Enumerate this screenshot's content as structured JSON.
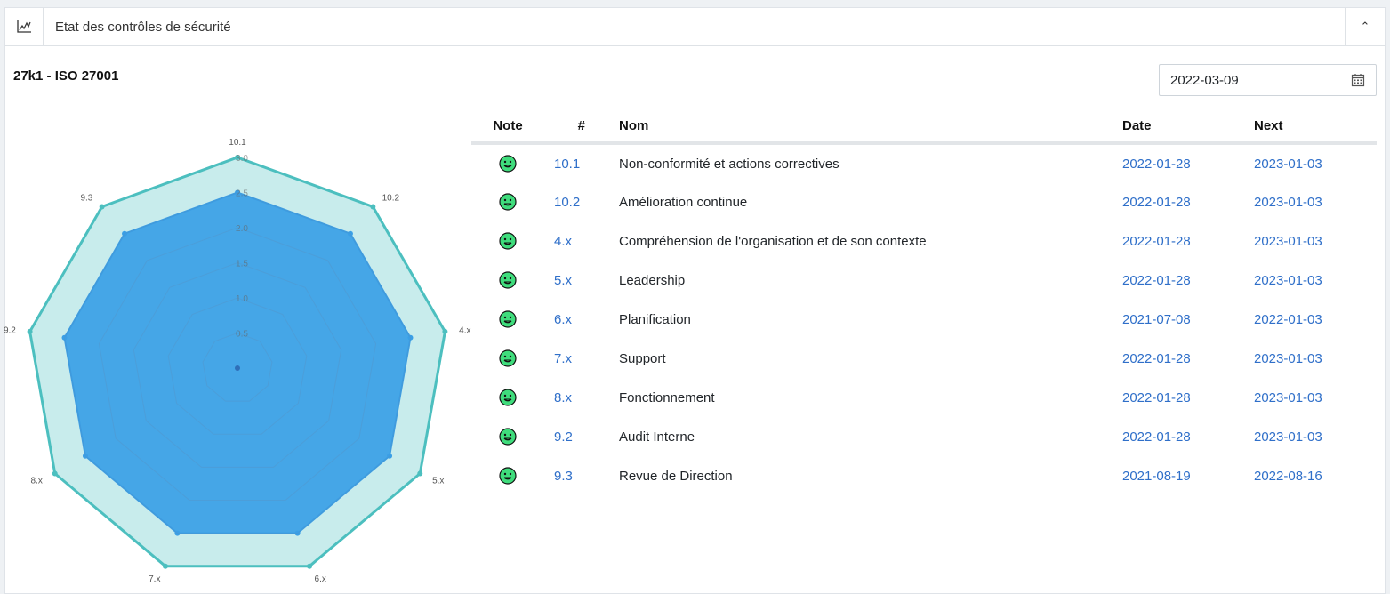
{
  "panel": {
    "title": "Etat des contrôles de sécurité",
    "header_icon": "line-chart-icon",
    "toggle_icon": "chevron-up-icon",
    "toggle_glyph": "⌃"
  },
  "subtitle": "27k1 - ISO 27001",
  "date_input": {
    "value": "2022-03-09",
    "icon": "calendar-icon"
  },
  "table": {
    "headers": {
      "note": "Note",
      "num": "#",
      "nom": "Nom",
      "date": "Date",
      "next": "Next"
    },
    "rows": [
      {
        "note": "smiley-green",
        "num": "10.1",
        "nom": "Non-conformité et actions correctives",
        "date": "2022-01-28",
        "next": "2023-01-03"
      },
      {
        "note": "smiley-green",
        "num": "10.2",
        "nom": "Amélioration continue",
        "date": "2022-01-28",
        "next": "2023-01-03"
      },
      {
        "note": "smiley-green",
        "num": "4.x",
        "nom": "Compréhension de l'organisation et de son contexte",
        "date": "2022-01-28",
        "next": "2023-01-03"
      },
      {
        "note": "smiley-green",
        "num": "5.x",
        "nom": "Leadership",
        "date": "2022-01-28",
        "next": "2023-01-03"
      },
      {
        "note": "smiley-green",
        "num": "6.x",
        "nom": "Planification",
        "date": "2021-07-08",
        "next": "2022-01-03"
      },
      {
        "note": "smiley-green",
        "num": "7.x",
        "nom": "Support",
        "date": "2022-01-28",
        "next": "2023-01-03"
      },
      {
        "note": "smiley-green",
        "num": "8.x",
        "nom": "Fonctionnement",
        "date": "2022-01-28",
        "next": "2023-01-03"
      },
      {
        "note": "smiley-green",
        "num": "9.2",
        "nom": "Audit Interne",
        "date": "2022-01-28",
        "next": "2023-01-03"
      },
      {
        "note": "smiley-green",
        "num": "9.3",
        "nom": "Revue de Direction",
        "date": "2021-08-19",
        "next": "2022-08-16"
      }
    ]
  },
  "colors": {
    "link": "#2f6fc9",
    "smiley_fill": "#3fdc7c",
    "radar_outer_stroke": "#4cbfbf",
    "radar_outer_fill": "#c8ecec",
    "radar_inner_fill": "#3a9fe6"
  },
  "chart_data": {
    "type": "radar",
    "categories": [
      "10.1",
      "10.2",
      "4.x",
      "5.x",
      "6.x",
      "7.x",
      "8.x",
      "9.2",
      "9.3"
    ],
    "scale_ticks": [
      "0.5",
      "1.0",
      "1.5",
      "2.0",
      "2.5",
      "3.0"
    ],
    "r_range": [
      0,
      3.0
    ],
    "series": [
      {
        "values": [
          3,
          3,
          3,
          3,
          3,
          3,
          3,
          3,
          3
        ],
        "color": "#4cbfbf",
        "fill": "#c8ecec"
      },
      {
        "values": [
          2.5,
          2.5,
          2.5,
          2.5,
          2.5,
          2.5,
          2.5,
          2.5,
          2.5
        ],
        "color": "#3a9fe6",
        "fill": "#3a9fe6"
      }
    ]
  }
}
